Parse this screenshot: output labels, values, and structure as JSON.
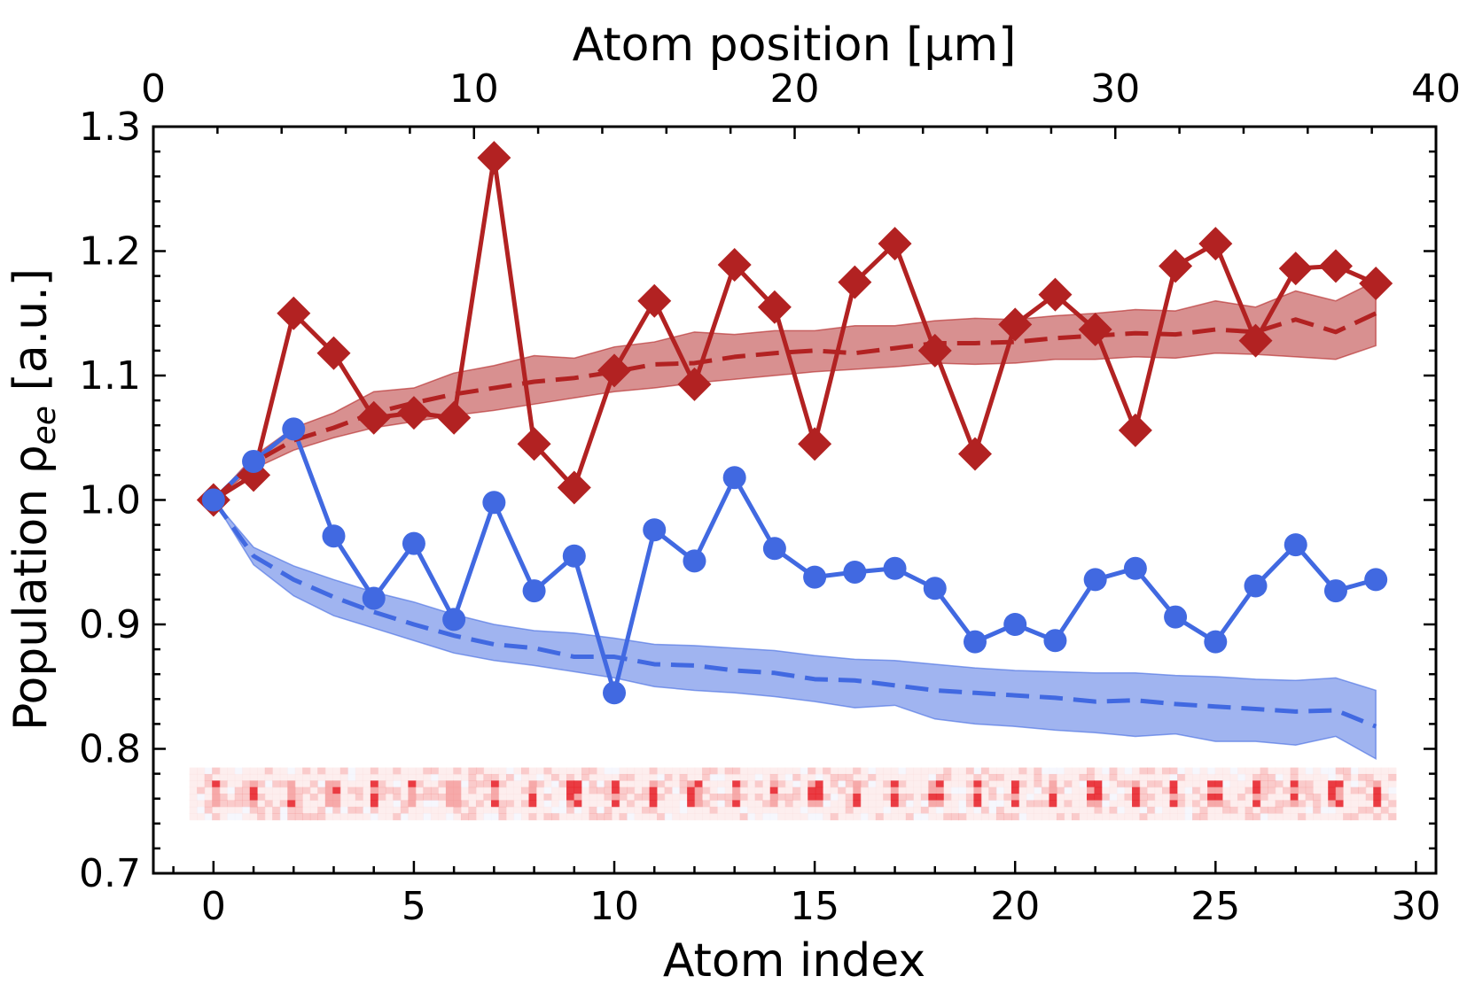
{
  "chart_data": {
    "type": "line",
    "xlabel": "Atom index",
    "ylabel_main": "Population ρ",
    "ylabel_sub": "ee",
    "ylabel_unit": " [a.u.]",
    "x2label": "Atom position [μm]",
    "xlim": [
      -1.5,
      30.5
    ],
    "x2lim": [
      0,
      40
    ],
    "ylim": [
      0.7,
      1.3
    ],
    "x_ticks": [
      0,
      5,
      10,
      15,
      20,
      25,
      30
    ],
    "x2_ticks": [
      0,
      10,
      20,
      30,
      40
    ],
    "y_ticks": [
      0.7,
      0.8,
      0.9,
      1.0,
      1.1,
      1.2,
      1.3
    ],
    "y_tick_labels": [
      "0.7",
      "0.8",
      "0.9",
      "1.0",
      "1.1",
      "1.2",
      "1.3"
    ],
    "grid": false,
    "x": [
      0,
      1,
      2,
      3,
      4,
      5,
      6,
      7,
      8,
      9,
      10,
      11,
      12,
      13,
      14,
      15,
      16,
      17,
      18,
      19,
      20,
      21,
      22,
      23,
      24,
      25,
      26,
      27,
      28,
      29
    ],
    "series": [
      {
        "color": "#b22222",
        "marker": "diamond",
        "values": [
          1.0,
          1.02,
          1.15,
          1.118,
          1.066,
          1.07,
          1.066,
          1.275,
          1.045,
          1.01,
          1.104,
          1.16,
          1.093,
          1.189,
          1.155,
          1.045,
          1.175,
          1.206,
          1.12,
          1.037,
          1.141,
          1.165,
          1.137,
          1.056,
          1.188,
          1.206,
          1.128,
          1.186,
          1.188,
          1.174
        ]
      },
      {
        "color": "#4169e1",
        "marker": "circle",
        "values": [
          1.0,
          1.031,
          1.057,
          0.971,
          0.921,
          0.965,
          0.904,
          0.998,
          0.927,
          0.955,
          0.845,
          0.976,
          0.951,
          1.018,
          0.961,
          0.938,
          0.942,
          0.945,
          0.929,
          0.886,
          0.9,
          0.887,
          0.936,
          0.945,
          0.906,
          0.886,
          0.931,
          0.964,
          0.927,
          0.936
        ]
      },
      {
        "color": "#b22222",
        "style": "dashed",
        "band": true,
        "values": [
          1.0,
          1.03,
          1.048,
          1.058,
          1.07,
          1.078,
          1.085,
          1.09,
          1.095,
          1.098,
          1.103,
          1.109,
          1.11,
          1.115,
          1.118,
          1.12,
          1.118,
          1.122,
          1.126,
          1.126,
          1.127,
          1.13,
          1.132,
          1.134,
          1.133,
          1.137,
          1.135,
          1.145,
          1.135,
          1.15
        ],
        "lower": [
          1.0,
          1.025,
          1.04,
          1.05,
          1.058,
          1.063,
          1.068,
          1.072,
          1.077,
          1.082,
          1.087,
          1.09,
          1.094,
          1.097,
          1.1,
          1.103,
          1.105,
          1.107,
          1.11,
          1.109,
          1.11,
          1.113,
          1.113,
          1.115,
          1.114,
          1.118,
          1.117,
          1.115,
          1.113,
          1.124
        ],
        "upper": [
          1.0,
          1.035,
          1.058,
          1.07,
          1.087,
          1.09,
          1.102,
          1.108,
          1.116,
          1.114,
          1.123,
          1.127,
          1.135,
          1.133,
          1.136,
          1.136,
          1.14,
          1.14,
          1.144,
          1.146,
          1.145,
          1.148,
          1.15,
          1.153,
          1.152,
          1.16,
          1.155,
          1.168,
          1.16,
          1.176
        ]
      },
      {
        "color": "#4169e1",
        "style": "dashed",
        "band": true,
        "values": [
          1.0,
          0.955,
          0.936,
          0.922,
          0.91,
          0.9,
          0.891,
          0.884,
          0.881,
          0.874,
          0.874,
          0.868,
          0.867,
          0.863,
          0.861,
          0.856,
          0.855,
          0.851,
          0.847,
          0.845,
          0.843,
          0.841,
          0.838,
          0.839,
          0.836,
          0.834,
          0.832,
          0.83,
          0.831,
          0.818
        ],
        "lower": [
          1.0,
          0.948,
          0.923,
          0.907,
          0.897,
          0.887,
          0.877,
          0.871,
          0.867,
          0.862,
          0.857,
          0.85,
          0.847,
          0.845,
          0.842,
          0.838,
          0.833,
          0.835,
          0.824,
          0.82,
          0.818,
          0.815,
          0.813,
          0.81,
          0.812,
          0.806,
          0.806,
          0.803,
          0.81,
          0.792
        ],
        "upper": [
          1.0,
          0.962,
          0.947,
          0.936,
          0.926,
          0.918,
          0.908,
          0.9,
          0.895,
          0.893,
          0.889,
          0.884,
          0.883,
          0.881,
          0.879,
          0.875,
          0.872,
          0.871,
          0.868,
          0.865,
          0.863,
          0.862,
          0.861,
          0.861,
          0.859,
          0.858,
          0.856,
          0.855,
          0.857,
          0.847
        ]
      }
    ],
    "inset_image": {
      "description_colors": [
        "#e8262e",
        "#f5a0a0",
        "#fbe0e0",
        "#eef0fb"
      ],
      "y_range": [
        0.743,
        0.785
      ],
      "x_range": [
        -0.6,
        29.5
      ]
    }
  }
}
